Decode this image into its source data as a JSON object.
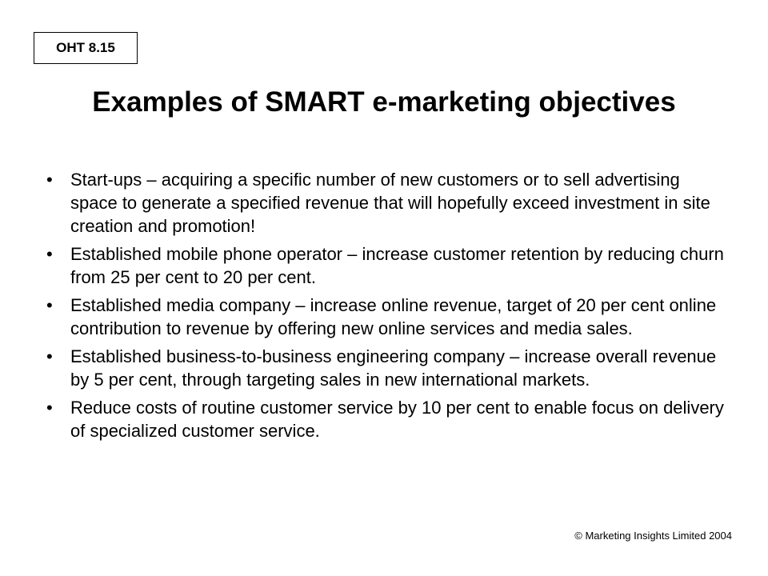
{
  "slide": {
    "label": "OHT 8.15",
    "title": "Examples of SMART e-marketing objectives",
    "bullet_symbol": "•",
    "bullets": [
      "Start-ups – acquiring a specific number of new customers or to sell advertising space to generate a specified revenue that will hopefully exceed investment in site creation and promotion!",
      "Established mobile phone operator – increase customer retention by reducing churn from 25 per cent to 20 per cent.",
      "Established media company – increase online revenue, target of 20 per cent online contribution to revenue by offering new online services and media sales.",
      "Established business-to-business engineering company – increase overall revenue by 5 per cent, through targeting sales in new international markets.",
      "Reduce costs of routine customer service by 10 per cent to enable focus on delivery of specialized customer service."
    ],
    "copyright": "© Marketing Insights Limited 2004"
  }
}
